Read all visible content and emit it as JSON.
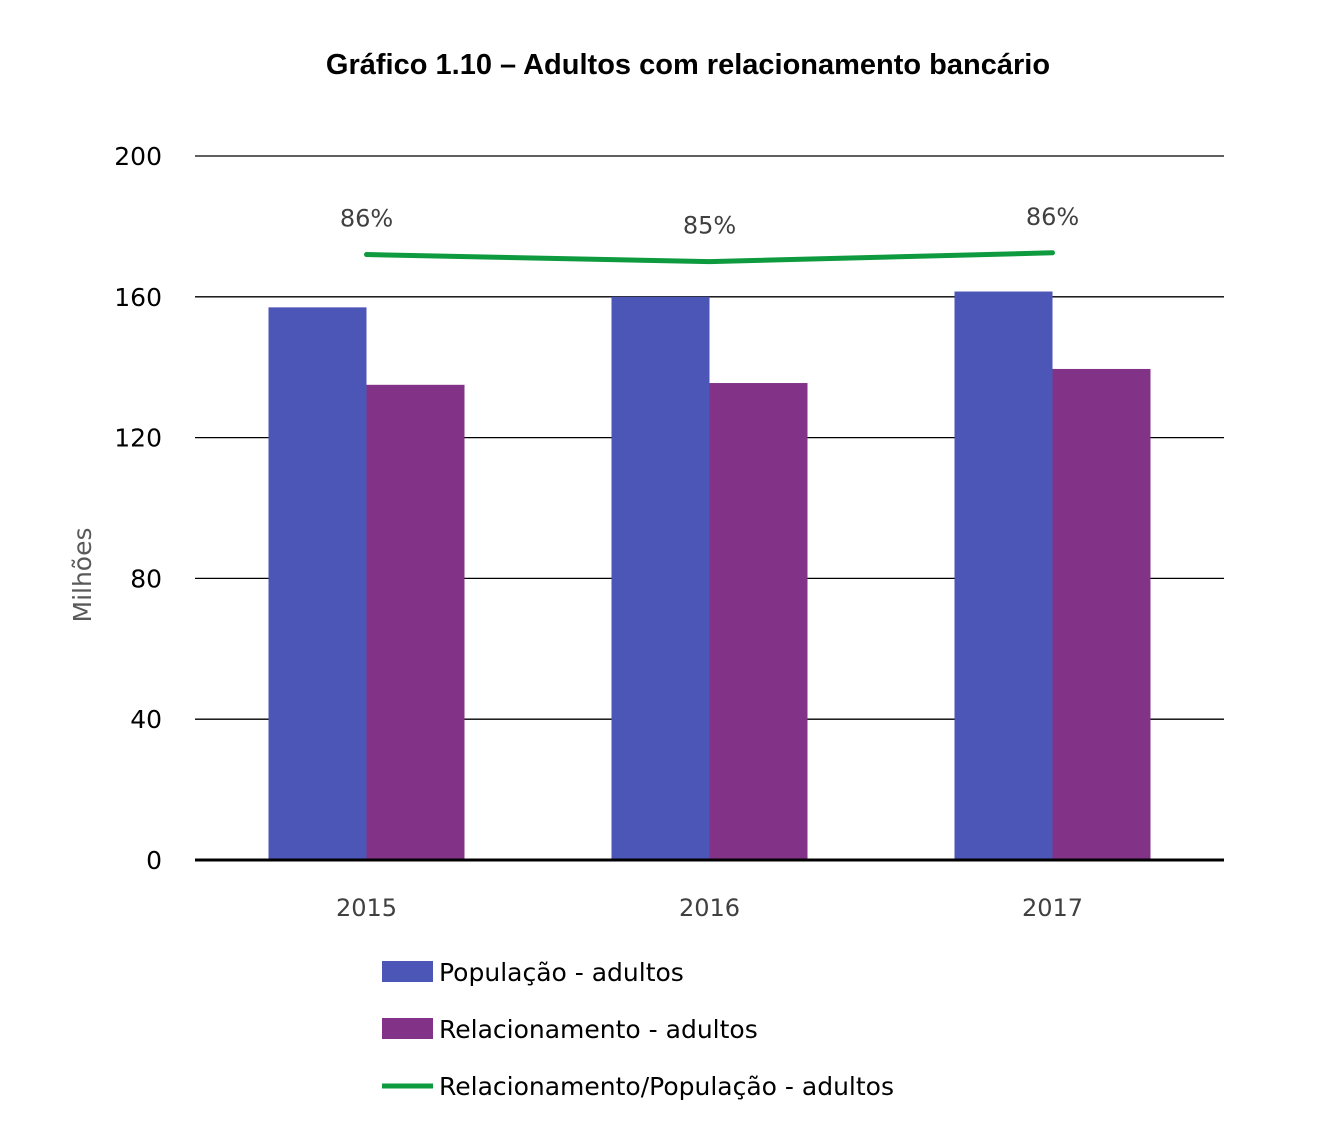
{
  "chart_data": {
    "type": "bar",
    "title": "Gráfico 1.10 – Adultos com relacionamento bancário",
    "xlabel": "",
    "ylabel": "Milhões",
    "ylim": [
      0,
      200
    ],
    "yticks": [
      0,
      40,
      80,
      120,
      160,
      200
    ],
    "categories": [
      "2015",
      "2016",
      "2017"
    ],
    "grid": true,
    "legend_position": "bottom",
    "series": [
      {
        "name": "População - adultos",
        "type": "bar",
        "color": "#4B56B7",
        "values": [
          157,
          160,
          161.5
        ]
      },
      {
        "name": "Relacionamento - adultos",
        "type": "bar",
        "color": "#823387",
        "values": [
          135,
          135.5,
          139.5
        ]
      },
      {
        "name": "Relacionamento/População - adultos",
        "type": "line",
        "color": "#0E9A3E",
        "values": [
          86,
          85,
          86
        ],
        "labels": [
          "86%",
          "85%",
          "86%"
        ],
        "plotted_on_y": [
          172,
          170,
          172.5
        ]
      }
    ]
  }
}
